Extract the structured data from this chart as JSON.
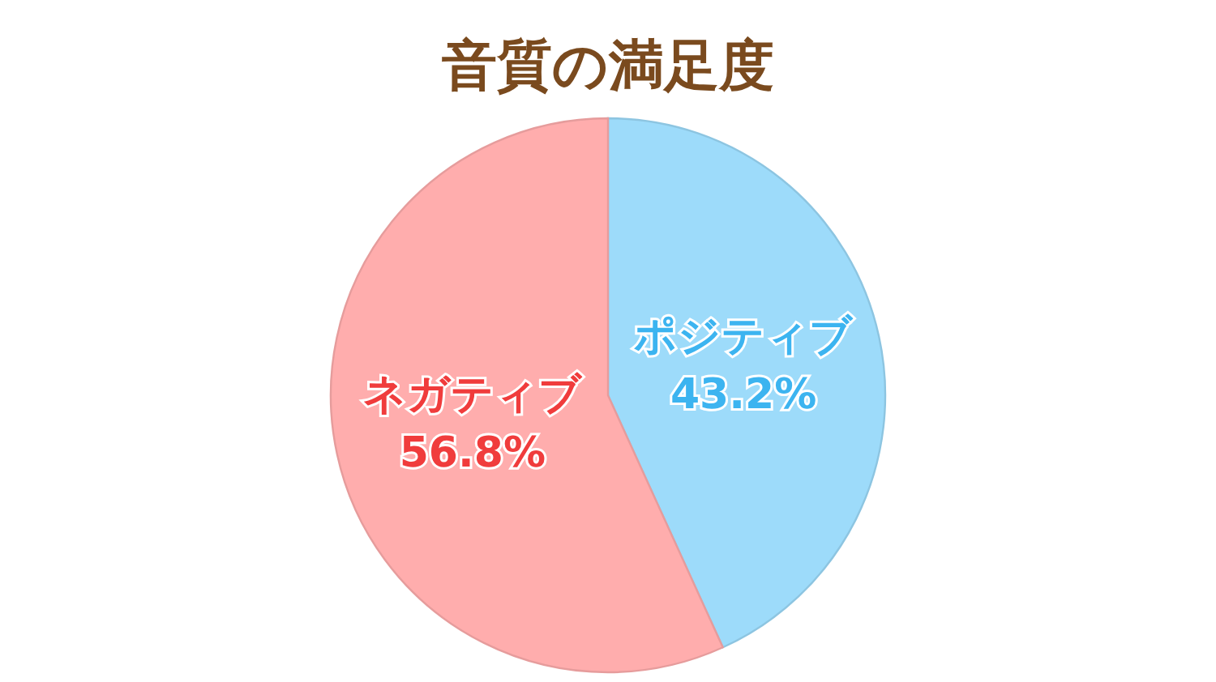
{
  "chart_data": {
    "type": "pie",
    "title": "音質の満足度",
    "categories": [
      "ポジティブ",
      "ネガティブ"
    ],
    "values": [
      43.2,
      56.8
    ],
    "colors": [
      "#9ddbfa",
      "#ffadad"
    ],
    "value_labels": [
      "43.2%",
      "56.8%"
    ]
  }
}
